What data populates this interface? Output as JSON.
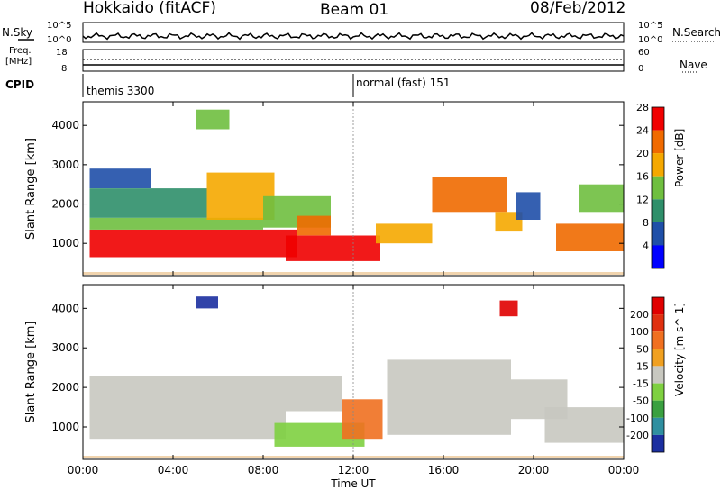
{
  "header": {
    "title": "Hokkaido (fitACF)",
    "beam": "Beam 01",
    "date": "08/Feb/2012"
  },
  "noise_panel": {
    "left_label": "N.Sky",
    "right_label": "N.Search",
    "left_ticks": [
      "10^5",
      "10^0"
    ],
    "right_ticks": [
      "10^5",
      "10^0"
    ]
  },
  "freq_panel": {
    "left_label_line1": "Freq.",
    "left_label_line2": "[MHz]",
    "right_label": "Nave",
    "left_ticks": [
      "18",
      "8"
    ],
    "right_ticks": [
      "60",
      "0"
    ]
  },
  "cpid_panel": {
    "label": "CPID",
    "segments": [
      {
        "name": "themis 3300",
        "start_hour": 0
      },
      {
        "name": "normal (fast) 151",
        "start_hour": 12
      }
    ]
  },
  "chart_data": [
    {
      "type": "heatmap",
      "parameter": "Power",
      "ylabel": "Slant Range [km]",
      "xlabel": "Time UT",
      "xlim": [
        0,
        24
      ],
      "ylim": [
        180,
        4600
      ],
      "x_ticks": [
        "00:00",
        "04:00",
        "08:00",
        "12:00",
        "16:00",
        "20:00",
        "00:00"
      ],
      "y_ticks": [
        1000,
        2000,
        3000,
        4000
      ],
      "colorbar": {
        "label": "Power [dB]",
        "ticks": [
          "4",
          "8",
          "12",
          "16",
          "20",
          "24",
          "28"
        ],
        "colors": [
          "#0000ff",
          "#1f4fa8",
          "#2f8f6a",
          "#6fbf3f",
          "#f5a800",
          "#f06a00",
          "#f00000"
        ]
      },
      "regions": [
        {
          "t0": 0.3,
          "t1": 9.5,
          "r0": 650,
          "r1": 1350,
          "level": 6
        },
        {
          "t0": 0.3,
          "t1": 8.0,
          "r0": 1350,
          "r1": 1650,
          "level": 3
        },
        {
          "t0": 0.3,
          "t1": 5.5,
          "r0": 1650,
          "r1": 2400,
          "level": 2
        },
        {
          "t0": 0.3,
          "t1": 3.0,
          "r0": 2400,
          "r1": 2900,
          "level": 1
        },
        {
          "t0": 5.5,
          "t1": 8.5,
          "r0": 1600,
          "r1": 2800,
          "level": 4
        },
        {
          "t0": 8.0,
          "t1": 11.0,
          "r0": 1400,
          "r1": 2200,
          "level": 3
        },
        {
          "t0": 9.0,
          "t1": 13.2,
          "r0": 550,
          "r1": 1200,
          "level": 6
        },
        {
          "t0": 9.5,
          "t1": 11.0,
          "r0": 1200,
          "r1": 1700,
          "level": 5
        },
        {
          "t0": 13.0,
          "t1": 15.5,
          "r0": 1000,
          "r1": 1500,
          "level": 4
        },
        {
          "t0": 15.5,
          "t1": 18.8,
          "r0": 1800,
          "r1": 2700,
          "level": 5
        },
        {
          "t0": 18.3,
          "t1": 19.5,
          "r0": 1300,
          "r1": 1800,
          "level": 4
        },
        {
          "t0": 19.2,
          "t1": 20.3,
          "r0": 1600,
          "r1": 2300,
          "level": 1
        },
        {
          "t0": 21.0,
          "t1": 24.0,
          "r0": 800,
          "r1": 1500,
          "level": 5
        },
        {
          "t0": 22.0,
          "t1": 24.0,
          "r0": 1800,
          "r1": 2500,
          "level": 3
        },
        {
          "t0": 5.0,
          "t1": 6.5,
          "r0": 3900,
          "r1": 4400,
          "level": 3
        }
      ]
    },
    {
      "type": "heatmap",
      "parameter": "Velocity",
      "ylabel": "Slant Range [km]",
      "xlabel": "Time UT",
      "xlim": [
        0,
        24
      ],
      "ylim": [
        180,
        4600
      ],
      "x_ticks": [
        "00:00",
        "04:00",
        "08:00",
        "12:00",
        "16:00",
        "20:00",
        "00:00"
      ],
      "y_ticks": [
        1000,
        2000,
        3000,
        4000
      ],
      "colorbar": {
        "label": "Velocity [m s^-1]",
        "ticks": [
          "200",
          "100",
          "50",
          "15",
          "-15",
          "-50",
          "-100",
          "-200"
        ],
        "colors": [
          "#1b2fa0",
          "#2f8fa0",
          "#3aa040",
          "#7ed040",
          "#c8c8c0",
          "#f0a020",
          "#f07020",
          "#e03010",
          "#e00000"
        ]
      },
      "regions": [
        {
          "t0": 0.3,
          "t1": 9.0,
          "r0": 700,
          "r1": 2300,
          "level": 4
        },
        {
          "t0": 9.0,
          "t1": 11.5,
          "r0": 1400,
          "r1": 2300,
          "level": 4
        },
        {
          "t0": 8.5,
          "t1": 12.5,
          "r0": 500,
          "r1": 1100,
          "level": 3
        },
        {
          "t0": 11.5,
          "t1": 13.3,
          "r0": 700,
          "r1": 1700,
          "level": 6
        },
        {
          "t0": 13.5,
          "t1": 19.0,
          "r0": 800,
          "r1": 2700,
          "level": 4
        },
        {
          "t0": 19.0,
          "t1": 21.5,
          "r0": 1200,
          "r1": 2200,
          "level": 4
        },
        {
          "t0": 20.5,
          "t1": 24.0,
          "r0": 600,
          "r1": 1500,
          "level": 4
        },
        {
          "t0": 5.0,
          "t1": 6.0,
          "r0": 4000,
          "r1": 4300,
          "level": 0
        },
        {
          "t0": 18.5,
          "t1": 19.3,
          "r0": 3800,
          "r1": 4200,
          "level": 8
        }
      ]
    }
  ]
}
